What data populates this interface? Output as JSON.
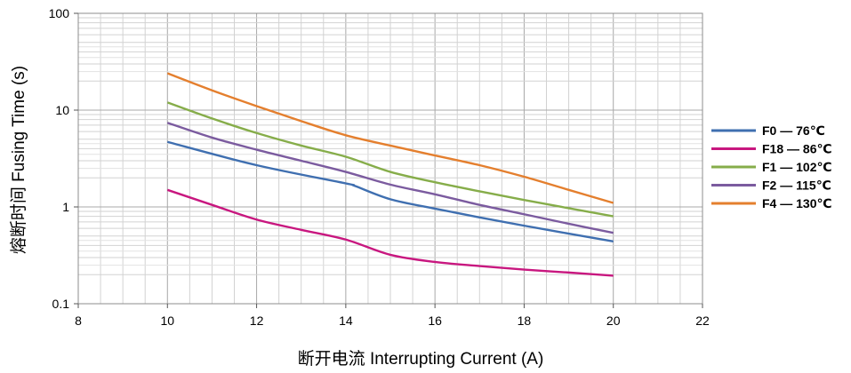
{
  "chart_data": {
    "type": "line",
    "xlabel": "断开电流  Interrupting Current (A)",
    "ylabel": "熔断时间  Fusing Time (s)",
    "xlim": [
      8,
      22
    ],
    "ylim": [
      0.1,
      100
    ],
    "yscale": "log",
    "grid": true,
    "legend_position": "right",
    "x_ticks": [
      "8",
      "10",
      "12",
      "14",
      "16",
      "18",
      "20",
      "22"
    ],
    "y_ticks": [
      "0.1",
      "1",
      "10",
      "100"
    ],
    "series": [
      {
        "name": "F0 — 76℃",
        "color": "#3f6fb0",
        "x": [
          10,
          12,
          14,
          14.2,
          15,
          16,
          17,
          18,
          19,
          20
        ],
        "y": [
          4.7,
          2.7,
          1.75,
          1.65,
          1.2,
          0.96,
          0.78,
          0.64,
          0.53,
          0.44
        ]
      },
      {
        "name": "F18 — 86℃",
        "color": "#c8177f",
        "x": [
          10,
          11,
          12,
          13,
          14,
          15,
          16,
          17,
          18,
          19,
          20
        ],
        "y": [
          1.5,
          1.05,
          0.74,
          0.58,
          0.46,
          0.32,
          0.27,
          0.245,
          0.225,
          0.21,
          0.195
        ]
      },
      {
        "name": "F1 — 102℃",
        "color": "#86ad4a",
        "x": [
          10,
          11,
          12,
          13,
          14,
          15,
          16,
          17,
          18,
          19,
          20
        ],
        "y": [
          12,
          8.2,
          5.8,
          4.3,
          3.3,
          2.3,
          1.8,
          1.45,
          1.18,
          0.97,
          0.8
        ]
      },
      {
        "name": "F2 — 115℃",
        "color": "#7b5b9f",
        "x": [
          10,
          11,
          12,
          13,
          14,
          15,
          16,
          17,
          18,
          19,
          20
        ],
        "y": [
          7.4,
          5.2,
          3.9,
          3.0,
          2.3,
          1.7,
          1.35,
          1.05,
          0.84,
          0.67,
          0.54
        ]
      },
      {
        "name": "F4 — 130℃",
        "color": "#e47f2e",
        "x": [
          10,
          11,
          12,
          13,
          14,
          15,
          16,
          17,
          18,
          19,
          20
        ],
        "y": [
          24,
          16,
          11,
          7.7,
          5.5,
          4.3,
          3.4,
          2.7,
          2.05,
          1.5,
          1.1
        ]
      }
    ]
  }
}
